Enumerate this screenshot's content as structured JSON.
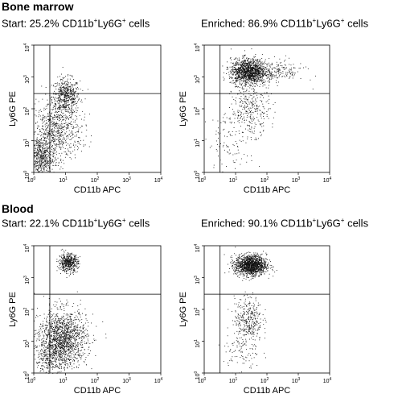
{
  "sections": [
    {
      "title": "Bone marrow"
    },
    {
      "title": "Blood"
    }
  ],
  "chart_data": [
    {
      "type": "scatter",
      "section": "Bone marrow",
      "caption": {
        "prefix": "Start: 25.2% CD11b",
        "mid": "Ly6G",
        "suffix": " cells"
      },
      "xlabel": "CD11b APC",
      "ylabel": "Ly6G PE",
      "x_scale": "log",
      "y_scale": "log",
      "xlim": [
        1,
        10000
      ],
      "ylim": [
        1,
        10000
      ],
      "x_ticks": [
        "10^0",
        "10^1",
        "10^2",
        "10^3",
        "10^4"
      ],
      "y_ticks": [
        "10^0",
        "10^1",
        "10^2",
        "10^3",
        "10^4"
      ],
      "gate": {
        "x": 3.2,
        "y": 300
      },
      "percent_double_positive": 25.2,
      "clusters": [
        {
          "cx": 10,
          "cy": 250,
          "sx": 0.22,
          "sy": 0.28,
          "n": 550
        },
        {
          "cx": 5,
          "cy": 20,
          "sx": 0.4,
          "sy": 0.45,
          "n": 700
        },
        {
          "cx": 1.6,
          "cy": 3,
          "sx": 0.22,
          "sy": 0.35,
          "n": 600
        }
      ]
    },
    {
      "type": "scatter",
      "section": "Bone marrow",
      "caption": {
        "prefix": "Enriched: 86.9% CD11b",
        "mid": "Ly6G",
        "suffix": " cells"
      },
      "xlabel": "CD11b APC",
      "ylabel": "Ly6G PE",
      "x_scale": "log",
      "y_scale": "log",
      "xlim": [
        1,
        10000
      ],
      "ylim": [
        1,
        10000
      ],
      "x_ticks": [
        "10^0",
        "10^1",
        "10^2",
        "10^3",
        "10^4"
      ],
      "y_ticks": [
        "10^0",
        "10^1",
        "10^2",
        "10^3",
        "10^4"
      ],
      "gate": {
        "x": 3.2,
        "y": 300
      },
      "percent_double_positive": 86.9,
      "clusters": [
        {
          "cx": 25,
          "cy": 1500,
          "sx": 0.28,
          "sy": 0.2,
          "n": 1300
        },
        {
          "cx": 150,
          "cy": 1500,
          "sx": 0.5,
          "sy": 0.18,
          "n": 250
        },
        {
          "cx": 30,
          "cy": 100,
          "sx": 0.3,
          "sy": 0.4,
          "n": 300
        },
        {
          "cx": 8,
          "cy": 10,
          "sx": 0.4,
          "sy": 0.5,
          "n": 120
        }
      ]
    },
    {
      "type": "scatter",
      "section": "Blood",
      "caption": {
        "prefix": "Start: 22.1% CD11b",
        "mid": "Ly6G",
        "suffix": " cells"
      },
      "xlabel": "CD11b APC",
      "ylabel": "Ly6G PE",
      "x_scale": "log",
      "y_scale": "log",
      "xlim": [
        1,
        10000
      ],
      "ylim": [
        1,
        10000
      ],
      "x_ticks": [
        "10^0",
        "10^1",
        "10^2",
        "10^3",
        "10^4"
      ],
      "y_ticks": [
        "10^0",
        "10^1",
        "10^2",
        "10^3",
        "10^4"
      ],
      "gate": {
        "x": 3.2,
        "y": 300
      },
      "percent_double_positive": 22.1,
      "clusters": [
        {
          "cx": 12,
          "cy": 3000,
          "sx": 0.15,
          "sy": 0.14,
          "n": 500
        },
        {
          "cx": 8,
          "cy": 12,
          "sx": 0.38,
          "sy": 0.45,
          "n": 1500
        },
        {
          "cx": 3,
          "cy": 3,
          "sx": 0.3,
          "sy": 0.3,
          "n": 250
        }
      ]
    },
    {
      "type": "scatter",
      "section": "Blood",
      "caption": {
        "prefix": "Enriched: 90.1% CD11b",
        "mid": "Ly6G",
        "suffix": " cells"
      },
      "xlabel": "CD11b APC",
      "ylabel": "Ly6G PE",
      "x_scale": "log",
      "y_scale": "log",
      "xlim": [
        1,
        10000
      ],
      "ylim": [
        1,
        10000
      ],
      "x_ticks": [
        "10^0",
        "10^1",
        "10^2",
        "10^3",
        "10^4"
      ],
      "y_ticks": [
        "10^0",
        "10^1",
        "10^2",
        "10^3",
        "10^4"
      ],
      "gate": {
        "x": 3.2,
        "y": 300
      },
      "percent_double_positive": 90.1,
      "clusters": [
        {
          "cx": 30,
          "cy": 2500,
          "sx": 0.25,
          "sy": 0.16,
          "n": 1400
        },
        {
          "cx": 25,
          "cy": 50,
          "sx": 0.22,
          "sy": 0.35,
          "n": 350
        },
        {
          "cx": 15,
          "cy": 5,
          "sx": 0.3,
          "sy": 0.35,
          "n": 100
        }
      ]
    }
  ]
}
